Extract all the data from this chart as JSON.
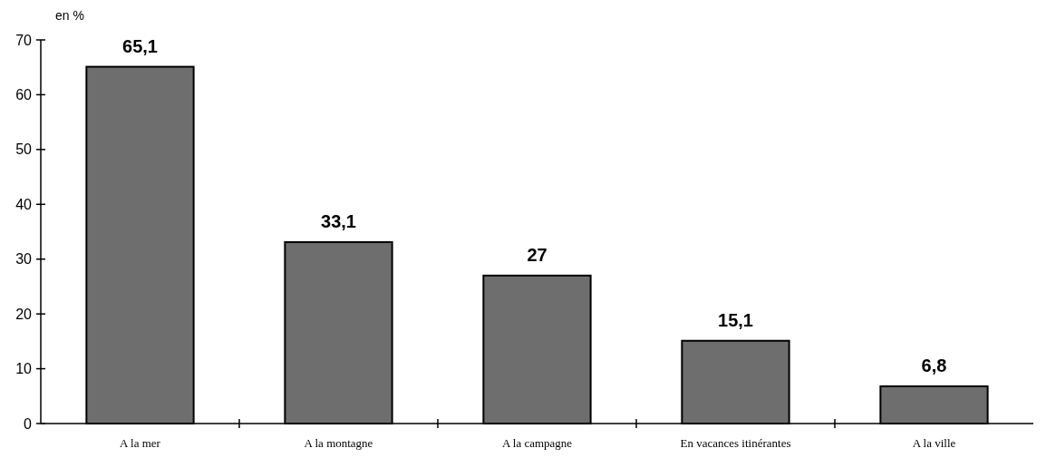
{
  "chart_data": {
    "type": "bar",
    "ylabel": "en %",
    "categories": [
      "A la mer",
      "A la montagne",
      "A la campagne",
      "En vacances itinérantes",
      "A la ville"
    ],
    "values": [
      65.1,
      33.1,
      27,
      15.1,
      6.8
    ],
    "value_labels": [
      "65,1",
      "33,1",
      "27",
      "15,1",
      "6,8"
    ],
    "color": "#6e6e6e",
    "ylim": [
      0,
      70
    ],
    "yticks": [
      0,
      10,
      20,
      30,
      40,
      50,
      60,
      70
    ],
    "grid": false
  }
}
